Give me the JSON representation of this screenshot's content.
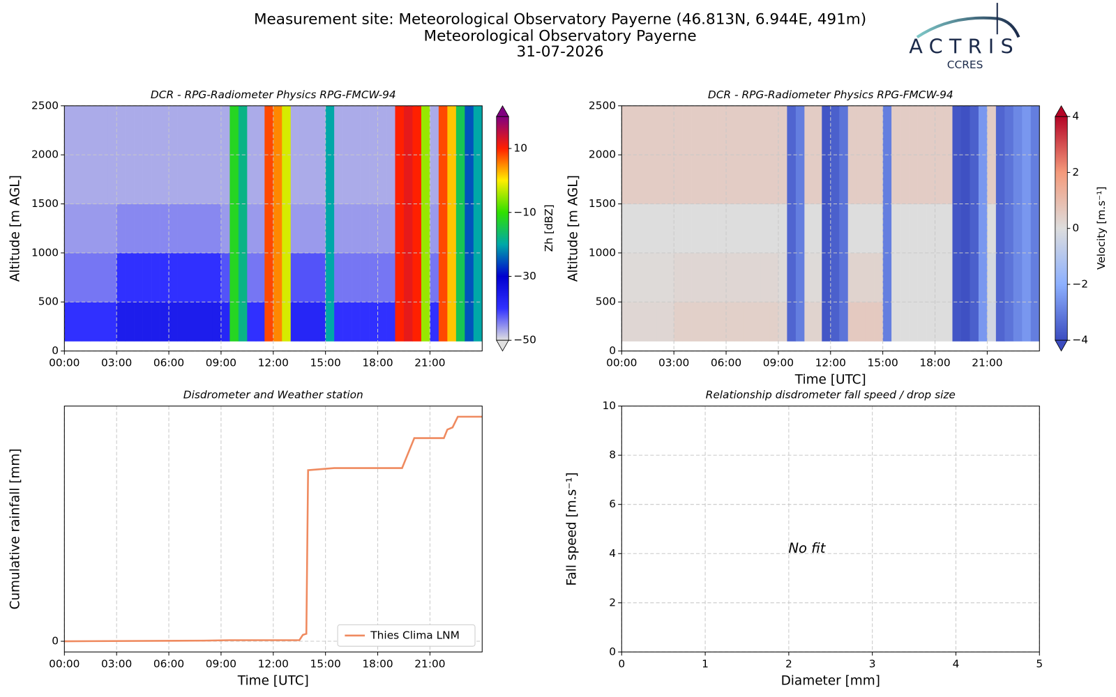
{
  "header": {
    "lines": [
      "Measurement site: Meteorological Observatory Payerne (46.813N, 6.944E, 491m)",
      "Meteorological Observatory Payerne",
      "31-07-2026"
    ],
    "logo": {
      "name": "ACTRIS",
      "subtitle": "CCRES"
    }
  },
  "chart_data": [
    {
      "type": "heatmap",
      "title": "DCR - RPG-Radiometer Physics RPG-FMCW-94",
      "y_label": "Altitude [m AGL]",
      "xlim": [
        0,
        24
      ],
      "xticks": [
        {
          "value": 0,
          "label": "00:00"
        },
        {
          "value": 3,
          "label": "03:00"
        },
        {
          "value": 6,
          "label": "06:00"
        },
        {
          "value": 9,
          "label": "09:00"
        },
        {
          "value": 12,
          "label": "12:00"
        },
        {
          "value": 15,
          "label": "15:00"
        },
        {
          "value": 18,
          "label": "18:00"
        },
        {
          "value": 21,
          "label": "21:00"
        }
      ],
      "ylim": [
        0,
        2500
      ],
      "yticks": [
        0,
        500,
        1000,
        1500,
        2000,
        2500
      ],
      "grid": true,
      "x_bins": [
        0,
        0.5,
        1,
        1.5,
        2,
        2.5,
        3,
        3.5,
        4,
        4.5,
        5,
        5.5,
        6,
        6.5,
        7,
        7.5,
        8,
        8.5,
        9,
        9.5,
        10,
        10.5,
        11,
        11.5,
        12,
        12.5,
        13,
        13.5,
        14,
        14.5,
        15,
        15.5,
        16,
        16.5,
        17,
        17.5,
        18,
        18.5,
        19,
        19.5,
        20,
        20.5,
        21,
        21.5,
        22,
        22.5,
        23,
        23.5,
        24
      ],
      "y_bins": [
        100,
        500,
        1000,
        1500,
        2000,
        2500
      ],
      "z": [
        [
          -40,
          -40,
          -40,
          -40,
          -40,
          -40,
          -36,
          -36,
          -36,
          -36,
          -36,
          -36,
          -36,
          -36,
          -36,
          -36,
          -36,
          -36,
          -38,
          -12,
          -18,
          -40,
          -40,
          8,
          5,
          -2,
          -38,
          -38,
          -38,
          -38,
          -20,
          -40,
          -40,
          -40,
          -40,
          -40,
          -40,
          -40,
          10,
          12,
          10,
          -5,
          -40,
          8,
          2,
          -15,
          -25,
          -20
        ],
        [
          -44,
          -44,
          -44,
          -44,
          -44,
          -44,
          -40,
          -40,
          -40,
          -40,
          -40,
          -40,
          -40,
          -40,
          -40,
          -40,
          -40,
          -40,
          -42,
          -12,
          -18,
          -44,
          -44,
          8,
          5,
          -2,
          -42,
          -42,
          -42,
          -42,
          -20,
          -44,
          -44,
          -44,
          -44,
          -44,
          -44,
          -44,
          10,
          12,
          10,
          -5,
          -44,
          8,
          2,
          -15,
          -25,
          -20
        ],
        [
          -46,
          -46,
          -46,
          -46,
          -46,
          -46,
          -45,
          -45,
          -45,
          -45,
          -45,
          -45,
          -45,
          -45,
          -45,
          -45,
          -45,
          -45,
          -46,
          -12,
          -18,
          -46,
          -46,
          8,
          5,
          -2,
          -46,
          -46,
          -46,
          -46,
          -20,
          -46,
          -46,
          -46,
          -46,
          -46,
          -46,
          -46,
          10,
          12,
          10,
          -5,
          -46,
          8,
          2,
          -15,
          -25,
          -20
        ],
        [
          -47,
          -47,
          -47,
          -47,
          -47,
          -47,
          -47,
          -47,
          -47,
          -47,
          -47,
          -47,
          -47,
          -47,
          -47,
          -47,
          -47,
          -47,
          -47,
          -12,
          -18,
          -47,
          -47,
          8,
          5,
          -2,
          -47,
          -47,
          -47,
          -47,
          -20,
          -47,
          -47,
          -47,
          -47,
          -47,
          -47,
          -47,
          10,
          12,
          10,
          -5,
          -47,
          8,
          2,
          -15,
          -25,
          -20
        ],
        [
          -47,
          -47,
          -47,
          -47,
          -47,
          -47,
          -47,
          -47,
          -47,
          -47,
          -47,
          -47,
          -47,
          -47,
          -47,
          -47,
          -47,
          -47,
          -47,
          -12,
          -18,
          -47,
          -47,
          8,
          5,
          -2,
          -47,
          -47,
          -47,
          -47,
          -20,
          -47,
          -47,
          -47,
          -47,
          -47,
          -47,
          -47,
          10,
          12,
          10,
          -5,
          -47,
          8,
          2,
          -15,
          -25,
          -20
        ]
      ],
      "clim": [
        -50,
        20
      ],
      "colormap": [
        "#e0e0e0",
        "#3030ff",
        "#0000d0",
        "#00a8a8",
        "#30e000",
        "#ffee00",
        "#ff2000",
        "#800080"
      ],
      "colorbar_label": "Zh [dBZ]",
      "colorbar_ticks": [
        {
          "value": -50,
          "label": "−50"
        },
        {
          "value": -30,
          "label": "−30"
        },
        {
          "value": -10,
          "label": "−10"
        },
        10
      ]
    },
    {
      "type": "heatmap",
      "title": "DCR - RPG-Radiometer Physics RPG-FMCW-94",
      "y_label": "Altitude [m AGL]",
      "x_label": "Time [UTC]",
      "xlim": [
        0,
        24
      ],
      "xticks": [
        {
          "value": 0,
          "label": "00:00"
        },
        {
          "value": 3,
          "label": "03:00"
        },
        {
          "value": 6,
          "label": "06:00"
        },
        {
          "value": 9,
          "label": "09:00"
        },
        {
          "value": 12,
          "label": "12:00"
        },
        {
          "value": 15,
          "label": "15:00"
        },
        {
          "value": 18,
          "label": "18:00"
        },
        {
          "value": 21,
          "label": "21:00"
        }
      ],
      "ylim": [
        0,
        2500
      ],
      "yticks": [
        0,
        500,
        1000,
        1500,
        2000,
        2500
      ],
      "grid": true,
      "x_bins": [
        0,
        0.5,
        1,
        1.5,
        2,
        2.5,
        3,
        3.5,
        4,
        4.5,
        5,
        5.5,
        6,
        6.5,
        7,
        7.5,
        8,
        8.5,
        9,
        9.5,
        10,
        10.5,
        11,
        11.5,
        12,
        12.5,
        13,
        13.5,
        14,
        14.5,
        15,
        15.5,
        16,
        16.5,
        17,
        17.5,
        18,
        18.5,
        19,
        19.5,
        20,
        20.5,
        21,
        21.5,
        22,
        22.5,
        23,
        23.5,
        24
      ],
      "y_bins": [
        100,
        500,
        1000,
        1500,
        2000,
        2500
      ],
      "z": [
        [
          0.2,
          0.2,
          0.2,
          0.2,
          0.2,
          0.2,
          0.4,
          0.4,
          0.4,
          0.4,
          0.4,
          0.4,
          0.4,
          0.4,
          0.4,
          0.4,
          0.4,
          0.4,
          0.3,
          -3.5,
          -3,
          0.3,
          0.3,
          -3.8,
          -3.6,
          -3.2,
          0.6,
          0.6,
          0.6,
          0.6,
          -3,
          0,
          0,
          0,
          0,
          0,
          0,
          0,
          -3.8,
          -3.9,
          -3.6,
          -2.5,
          -0.3,
          -3.5,
          -3.2,
          -2.8,
          -2.5,
          -3
        ],
        [
          0.1,
          0.1,
          0.1,
          0.1,
          0.1,
          0.1,
          0.2,
          0.2,
          0.2,
          0.2,
          0.2,
          0.2,
          0.2,
          0.2,
          0.2,
          0.2,
          0.2,
          0.2,
          0.1,
          -3.5,
          -3,
          0.1,
          0.1,
          -3.8,
          -3.6,
          -3.2,
          0.3,
          0.3,
          0.3,
          0.3,
          -3,
          0,
          0,
          0,
          0,
          0,
          0,
          0,
          -3.8,
          -3.9,
          -3.6,
          -2.5,
          -0.2,
          -3.5,
          -3.2,
          -2.8,
          -2.5,
          -3
        ],
        [
          0,
          0,
          0,
          0,
          0,
          0,
          0,
          0,
          0,
          0,
          0,
          0,
          0,
          0,
          0,
          0,
          0,
          0,
          0,
          -3.5,
          -3,
          0,
          0,
          -3.8,
          -3.6,
          -3.2,
          0,
          0,
          0,
          0,
          -3,
          0,
          0,
          0,
          0,
          0,
          0,
          0,
          -3.8,
          -3.9,
          -3.6,
          -2.5,
          0,
          -3.5,
          -3.2,
          -2.8,
          -2.5,
          -3
        ],
        [
          0.5,
          0.5,
          0.5,
          0.5,
          0.5,
          0.5,
          0.5,
          0.5,
          0.5,
          0.5,
          0.5,
          0.5,
          0.5,
          0.5,
          0.5,
          0.5,
          0.5,
          0.5,
          0.5,
          -3.5,
          -3,
          0.5,
          0.5,
          -3.8,
          -3.6,
          -3.2,
          0.5,
          0.5,
          0.5,
          0.5,
          -3,
          0.5,
          0.5,
          0.5,
          0.5,
          0.5,
          0.5,
          0.5,
          -3.8,
          -3.9,
          -3.6,
          -2.5,
          0.5,
          -3.5,
          -3.2,
          -2.8,
          -2.5,
          -3
        ],
        [
          0.5,
          0.5,
          0.5,
          0.5,
          0.5,
          0.5,
          0.5,
          0.5,
          0.5,
          0.5,
          0.5,
          0.5,
          0.5,
          0.5,
          0.5,
          0.5,
          0.5,
          0.5,
          0.5,
          -3.5,
          -3,
          0.5,
          0.5,
          -3.8,
          -3.6,
          -3.2,
          0.5,
          0.5,
          0.5,
          0.5,
          -3,
          0.5,
          0.5,
          0.5,
          0.5,
          0.5,
          0.5,
          0.5,
          -3.8,
          -3.9,
          -3.6,
          -2.5,
          0.5,
          -3.5,
          -3.2,
          -2.8,
          -2.5,
          -3
        ]
      ],
      "clim": [
        -4,
        4
      ],
      "colormap": [
        "#3b4cc0",
        "#8db0fe",
        "#dddddd",
        "#f49a7b",
        "#b40426"
      ],
      "colorbar_label": "Velocity [m.s⁻¹]",
      "colorbar_ticks": [
        {
          "value": -4,
          "label": "−4"
        },
        {
          "value": -2,
          "label": "−2"
        },
        0,
        2,
        4
      ]
    },
    {
      "type": "line",
      "title": "Disdrometer and Weather station",
      "y_label": "Cumulative rainfall [mm]",
      "x_label": "Time [UTC]",
      "xlim": [
        0,
        24
      ],
      "xticks": [
        {
          "value": 0,
          "label": "00:00"
        },
        {
          "value": 3,
          "label": "03:00"
        },
        {
          "value": 6,
          "label": "06:00"
        },
        {
          "value": 9,
          "label": "09:00"
        },
        {
          "value": 12,
          "label": "12:00"
        },
        {
          "value": 15,
          "label": "15:00"
        },
        {
          "value": 18,
          "label": "18:00"
        },
        {
          "value": 21,
          "label": "21:00"
        }
      ],
      "ylim": [
        -0.5,
        11
      ],
      "yticks": [
        0
      ],
      "grid": true,
      "legend": "lower right",
      "x": [
        0,
        8,
        9.5,
        13.5,
        13.7,
        13.9,
        14.0,
        15.5,
        19.4,
        19.6,
        20.1,
        21.8,
        22.0,
        22.3,
        22.6,
        24
      ],
      "series": [
        {
          "name": "Thies Clima LNM",
          "color": "#ef8a5f",
          "values": [
            0,
            0.03,
            0.05,
            0.05,
            0.3,
            0.35,
            8.0,
            8.1,
            8.1,
            8.5,
            9.5,
            9.5,
            9.9,
            10.0,
            10.5,
            10.5
          ]
        }
      ]
    },
    {
      "type": "scatter",
      "title": "Relationship disdrometer fall speed / drop size",
      "y_label": "Fall speed [m.s⁻¹]",
      "x_label": "Diameter [mm]",
      "xlim": [
        0,
        5
      ],
      "xticks": [
        0,
        1,
        2,
        3,
        4,
        5
      ],
      "ylim": [
        0,
        10
      ],
      "yticks": [
        0,
        2,
        4,
        6,
        8,
        10
      ],
      "grid": true,
      "annotation": "No fit"
    }
  ]
}
